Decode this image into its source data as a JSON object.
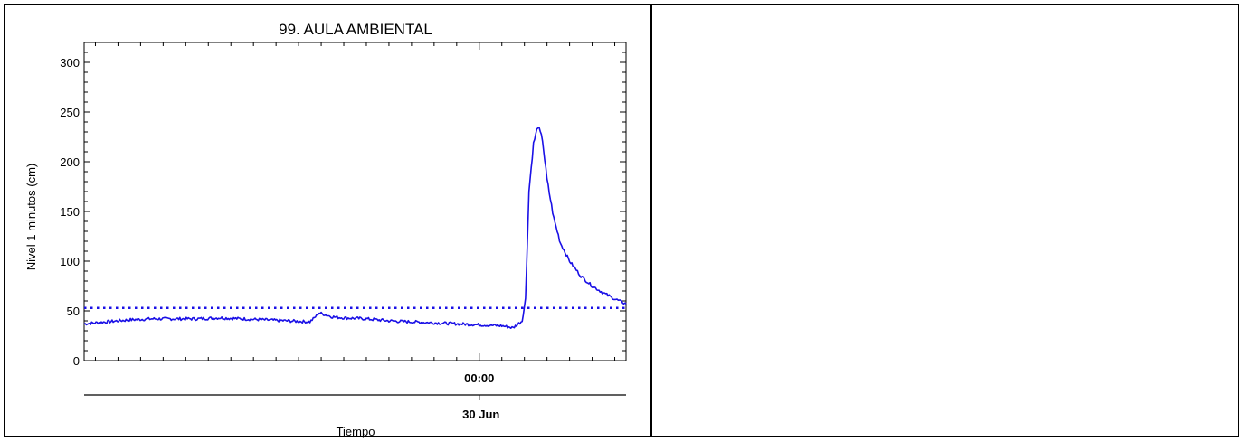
{
  "chart_data": {
    "type": "line",
    "title": "99. AULA AMBIENTAL",
    "ylabel": "Nivel 1 minutos (cm)",
    "xlabel": "Tiempo",
    "ylim": [
      0,
      320
    ],
    "yticks": [
      0,
      50,
      100,
      150,
      200,
      250,
      300
    ],
    "xlim": [
      -17.5,
      6.5
    ],
    "x_units": "hours relative to 30 Jun 00:00",
    "x_tick_time_label": "00:00",
    "x_tick_date_label": "30 Jun",
    "threshold": {
      "value": 53,
      "style": "dotted"
    },
    "line_color": "#1a10e6",
    "series": [
      {
        "x": [
          -17.5,
          -16.5,
          -15.5,
          -14.5,
          -13.5,
          -12.5,
          -11.5,
          -10.5,
          -9.5,
          -8.5,
          -7.5,
          -7.3,
          -7.1,
          -6.8,
          -6.5,
          -6.0,
          -5.0,
          -4.0,
          -3.0,
          -2.0,
          -1.0,
          0.0,
          1.0,
          1.5,
          1.9,
          2.05,
          2.2,
          2.4,
          2.6,
          2.8,
          3.0,
          3.3,
          3.6,
          4.0,
          4.5,
          5.0,
          5.5,
          6.0,
          6.5
        ],
        "y": [
          37,
          39,
          41,
          42,
          42,
          42,
          43,
          42,
          41,
          40,
          39,
          43,
          48,
          46,
          44,
          43,
          42,
          40,
          39,
          38,
          37,
          36,
          35,
          33,
          40,
          62,
          170,
          218,
          236,
          222,
          182,
          143,
          118,
          100,
          85,
          75,
          68,
          62,
          57
        ]
      }
    ]
  }
}
